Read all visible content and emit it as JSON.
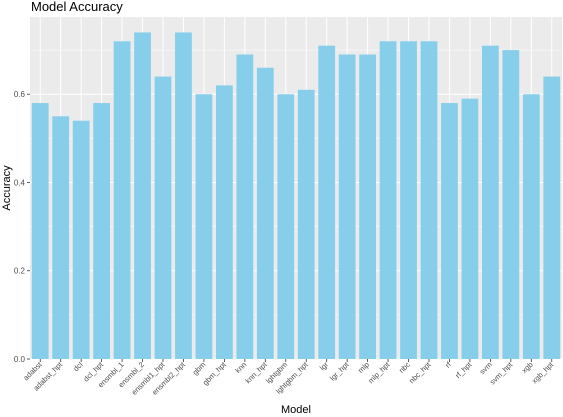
{
  "chart_data": {
    "type": "bar",
    "title": "Model Accuracy",
    "xlabel": "Model",
    "ylabel": "Accuracy",
    "ylim": [
      0,
      0.775
    ],
    "yticks": [
      0.0,
      0.2,
      0.4,
      0.6
    ],
    "ytick_labels": [
      "0.0",
      "0.2",
      "0.4",
      "0.6"
    ],
    "grid": true,
    "bar_color": "#87CEEB",
    "panel_color": "#EBEBEB",
    "grid_color": "#FFFFFF",
    "categories": [
      "adabst",
      "adabst_hpt",
      "dcl",
      "dcl_hpt",
      "ensmbl_1",
      "ensmbl_2",
      "ensmbl1_hpt",
      "ensmbl2_hpt",
      "gbm",
      "gbm_hpt",
      "knn",
      "knn_hpt",
      "lghtgbm",
      "lghtgbm_hpt",
      "lgr",
      "lgr_hpt",
      "mlp",
      "mlp_hpt",
      "nbc",
      "nbc_hpt",
      "rf",
      "rf_hpt",
      "svm",
      "svm_hpt",
      "xgb",
      "xgb_hpt"
    ],
    "values": [
      0.58,
      0.55,
      0.54,
      0.58,
      0.72,
      0.74,
      0.64,
      0.74,
      0.6,
      0.62,
      0.69,
      0.66,
      0.6,
      0.61,
      0.71,
      0.69,
      0.69,
      0.72,
      0.72,
      0.72,
      0.58,
      0.59,
      0.71,
      0.7,
      0.6,
      0.64
    ]
  }
}
